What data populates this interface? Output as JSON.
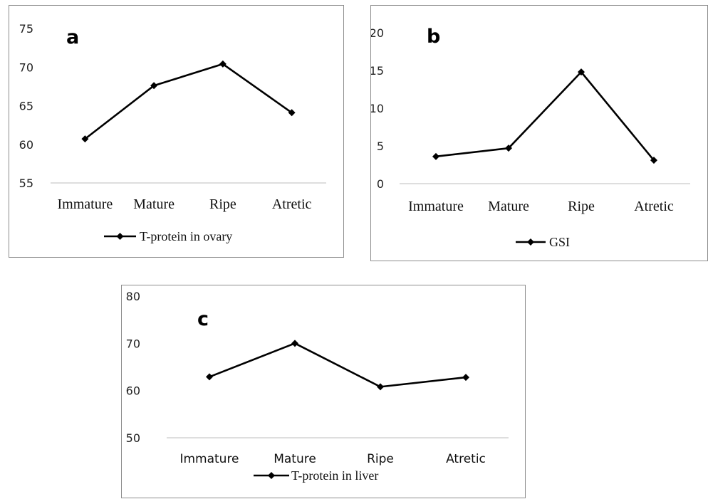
{
  "chart_data": [
    {
      "type": "line",
      "panel_label": "a",
      "categories": [
        "Immature",
        "Mature",
        "Ripe",
        "Atretic"
      ],
      "series": [
        {
          "name": "T-protein in ovary",
          "values": [
            60.7,
            67.6,
            70.4,
            64.1
          ]
        }
      ],
      "yticks": [
        "55",
        "60",
        "65",
        "70",
        "75"
      ],
      "ylim": [
        55,
        75
      ],
      "grid": false,
      "legend": "bottom",
      "line_color": "#000000"
    },
    {
      "type": "line",
      "panel_label": "b",
      "categories": [
        "Immature",
        "Mature",
        "Ripe",
        "Atretic"
      ],
      "series": [
        {
          "name": "GSI",
          "values": [
            3.6,
            4.7,
            14.8,
            3.1
          ]
        }
      ],
      "yticks": [
        "0",
        "5",
        "10",
        "15",
        "20"
      ],
      "ylim": [
        0,
        20
      ],
      "grid": false,
      "legend": "bottom",
      "line_color": "#000000"
    },
    {
      "type": "line",
      "panel_label": "c",
      "categories": [
        "Immature",
        "Mature",
        "Ripe",
        "Atretic"
      ],
      "series": [
        {
          "name": "T-protein in liver",
          "values": [
            62.9,
            70.0,
            60.8,
            62.8
          ]
        }
      ],
      "yticks": [
        "50",
        "60",
        "70",
        "80"
      ],
      "ylim": [
        50,
        80
      ],
      "grid": false,
      "legend": "bottom",
      "line_color": "#000000"
    }
  ]
}
